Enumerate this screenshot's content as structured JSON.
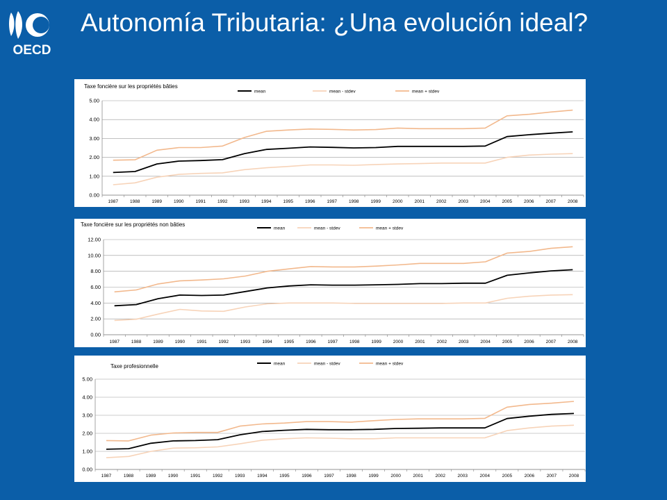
{
  "slide": {
    "title": "Autonomía Tributaria: ¿Una evolución ideal?"
  },
  "logo": {
    "text": "OECD",
    "icon": "oecd-logo-icon"
  },
  "colors": {
    "background": "#0b5ea8",
    "mean": "#000000",
    "mean_minus": "#f7d3b8",
    "mean_plus": "#f2b88c"
  },
  "chart_data": [
    {
      "type": "line",
      "title": "Taxe foncière sur les propriétés bâties",
      "legend": [
        "mean",
        "mean - stdev",
        "mean + stdev"
      ],
      "legend_position": "top",
      "grid": true,
      "categories": [
        "1987",
        "1988",
        "1989",
        "1990",
        "1991",
        "1992",
        "1993",
        "1994",
        "1995",
        "1996",
        "1997",
        "1998",
        "1999",
        "2000",
        "2001",
        "2002",
        "2003",
        "2004",
        "2005",
        "2006",
        "2007",
        "2008"
      ],
      "y_ticks": [
        "0.00",
        "1.00",
        "2.00",
        "3.00",
        "4.00",
        "5.00"
      ],
      "ylim": [
        0,
        5
      ],
      "series": [
        {
          "name": "mean",
          "values": [
            1.2,
            1.25,
            1.65,
            1.8,
            1.83,
            1.88,
            2.2,
            2.42,
            2.48,
            2.55,
            2.53,
            2.5,
            2.52,
            2.58,
            2.58,
            2.58,
            2.58,
            2.6,
            3.1,
            3.2,
            3.28,
            3.35
          ]
        },
        {
          "name": "mean - stdev",
          "values": [
            0.55,
            0.65,
            0.95,
            1.1,
            1.15,
            1.18,
            1.35,
            1.45,
            1.52,
            1.6,
            1.6,
            1.58,
            1.62,
            1.65,
            1.67,
            1.7,
            1.7,
            1.7,
            2.0,
            2.12,
            2.17,
            2.2
          ]
        },
        {
          "name": "mean + stdev",
          "values": [
            1.85,
            1.87,
            2.38,
            2.52,
            2.52,
            2.6,
            3.05,
            3.38,
            3.45,
            3.5,
            3.48,
            3.45,
            3.47,
            3.55,
            3.52,
            3.52,
            3.52,
            3.55,
            4.2,
            4.28,
            4.4,
            4.5
          ]
        }
      ]
    },
    {
      "type": "line",
      "title": "Taxe foncière sur les propriétés non bâties",
      "legend": [
        "mean",
        "mean - stdev",
        "mean + stdev"
      ],
      "legend_position": "top",
      "grid": true,
      "categories": [
        "1987",
        "1988",
        "1989",
        "1990",
        "1991",
        "1992",
        "1993",
        "1994",
        "1995",
        "1996",
        "1997",
        "1998",
        "1999",
        "2000",
        "2001",
        "2002",
        "2003",
        "2004",
        "2005",
        "2006",
        "2007",
        "2008"
      ],
      "y_ticks": [
        "0.00",
        "2.00",
        "4.00",
        "6.00",
        "8.00",
        "10.00",
        "12.00"
      ],
      "ylim": [
        0,
        12
      ],
      "series": [
        {
          "name": "mean",
          "values": [
            3.65,
            3.8,
            4.55,
            5.0,
            4.95,
            5.0,
            5.45,
            5.9,
            6.15,
            6.3,
            6.25,
            6.25,
            6.3,
            6.35,
            6.45,
            6.45,
            6.5,
            6.5,
            7.5,
            7.8,
            8.05,
            8.2
          ]
        },
        {
          "name": "mean - stdev",
          "values": [
            1.8,
            1.95,
            2.6,
            3.2,
            3.0,
            2.95,
            3.5,
            3.9,
            4.0,
            4.0,
            4.0,
            3.95,
            3.95,
            3.95,
            3.95,
            3.95,
            4.0,
            4.0,
            4.6,
            4.85,
            5.0,
            5.05
          ]
        },
        {
          "name": "mean + stdev",
          "values": [
            5.4,
            5.65,
            6.4,
            6.8,
            6.9,
            7.05,
            7.4,
            8.0,
            8.3,
            8.6,
            8.55,
            8.55,
            8.65,
            8.8,
            9.0,
            9.0,
            9.0,
            9.2,
            10.3,
            10.5,
            10.9,
            11.1
          ]
        }
      ]
    },
    {
      "type": "line",
      "title": "Taxe profesionnelle",
      "legend": [
        "mean",
        "mean - stdev",
        "mean + stdev"
      ],
      "legend_position": "top",
      "grid": true,
      "categories": [
        "1987",
        "1988",
        "1989",
        "1990",
        "1991",
        "1992",
        "1993",
        "1994",
        "1995",
        "1996",
        "1997",
        "1998",
        "1999",
        "2000",
        "2001",
        "2002",
        "2003",
        "2004",
        "2005",
        "2006",
        "2007",
        "2008"
      ],
      "y_ticks": [
        "0.00",
        "1.00",
        "2.00",
        "3.00",
        "4.00",
        "5.00"
      ],
      "ylim": [
        0,
        5
      ],
      "series": [
        {
          "name": "mean",
          "values": [
            1.12,
            1.15,
            1.45,
            1.58,
            1.6,
            1.65,
            1.92,
            2.1,
            2.17,
            2.22,
            2.2,
            2.2,
            2.22,
            2.27,
            2.28,
            2.3,
            2.3,
            2.3,
            2.82,
            2.95,
            3.05,
            3.1
          ]
        },
        {
          "name": "mean - stdev",
          "values": [
            0.65,
            0.72,
            1.0,
            1.18,
            1.2,
            1.25,
            1.42,
            1.62,
            1.7,
            1.75,
            1.73,
            1.7,
            1.7,
            1.75,
            1.75,
            1.75,
            1.75,
            1.75,
            2.15,
            2.3,
            2.4,
            2.45
          ]
        },
        {
          "name": "mean + stdev",
          "values": [
            1.6,
            1.58,
            1.9,
            2.02,
            2.05,
            2.05,
            2.4,
            2.52,
            2.57,
            2.65,
            2.65,
            2.62,
            2.7,
            2.77,
            2.8,
            2.8,
            2.8,
            2.83,
            3.45,
            3.6,
            3.67,
            3.77
          ]
        }
      ]
    }
  ]
}
